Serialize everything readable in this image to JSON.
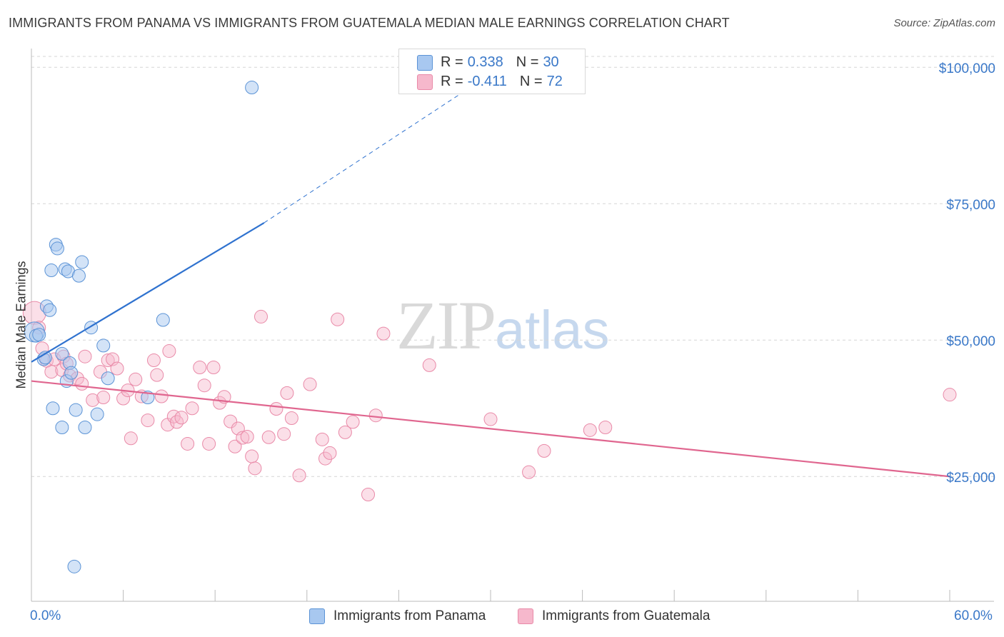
{
  "header": {
    "title": "IMMIGRANTS FROM PANAMA VS IMMIGRANTS FROM GUATEMALA MEDIAN MALE EARNINGS CORRELATION CHART",
    "source": "Source: ZipAtlas.com"
  },
  "watermark": {
    "zip": "ZIP",
    "atlas": "atlas"
  },
  "stats": [
    {
      "r_label": "R =",
      "r_value": "0.338",
      "n_label": "N =",
      "n_value": "30",
      "color": "#a8c8f0"
    },
    {
      "r_label": "R =",
      "r_value": "-0.411",
      "n_label": "N =",
      "n_value": "72",
      "color": "#f6b8cc"
    }
  ],
  "legend": {
    "panama": "Immigrants from Panama",
    "guatemala": "Immigrants from Guatemala"
  },
  "axes": {
    "ylabel": "Median Male Earnings",
    "x_min_label": "0.0%",
    "x_max_label": "60.0%",
    "y_ticks": [
      "$100,000",
      "$75,000",
      "$50,000",
      "$25,000"
    ]
  },
  "colors": {
    "panama_fill": "#a8c8f0",
    "panama_stroke": "#5b93d6",
    "panama_line": "#2f72cf",
    "guatemala_fill": "#f6b8cc",
    "guatemala_stroke": "#e98aa8",
    "guatemala_line": "#e0668f",
    "accent_text": "#3a78c8"
  },
  "chart_data": {
    "type": "scatter",
    "xlabel": "",
    "ylabel": "Median Male Earnings",
    "xlim": [
      0,
      60
    ],
    "ylim": [
      2000,
      103000
    ],
    "y_ticks": [
      25000,
      50000,
      75000,
      100000
    ],
    "grid": "horizontal dashed",
    "legend_placement": "bottom-center",
    "series": [
      {
        "name": "Immigrants from Panama",
        "trend": {
          "x": [
            0.0,
            15.2
          ],
          "y": [
            46000,
            71500
          ],
          "extended_to": [
            28.5,
            96000
          ]
        },
        "points": [
          [
            0.2,
            51500
          ],
          [
            0.3,
            50800
          ],
          [
            0.5,
            51000
          ],
          [
            0.8,
            46500
          ],
          [
            0.9,
            46800
          ],
          [
            1.0,
            56200
          ],
          [
            1.2,
            55500
          ],
          [
            1.3,
            62800
          ],
          [
            1.4,
            37500
          ],
          [
            1.6,
            67500
          ],
          [
            1.7,
            66800
          ],
          [
            2.0,
            47500
          ],
          [
            2.0,
            34000
          ],
          [
            2.2,
            63000
          ],
          [
            2.3,
            42500
          ],
          [
            2.4,
            62600
          ],
          [
            2.5,
            45800
          ],
          [
            2.6,
            44000
          ],
          [
            2.8,
            8500
          ],
          [
            2.9,
            37200
          ],
          [
            3.1,
            61800
          ],
          [
            3.3,
            64300
          ],
          [
            3.5,
            34000
          ],
          [
            3.9,
            52300
          ],
          [
            4.3,
            36400
          ],
          [
            4.7,
            49000
          ],
          [
            5.0,
            43000
          ],
          [
            7.6,
            39500
          ],
          [
            8.6,
            53700
          ],
          [
            14.4,
            96300
          ]
        ]
      },
      {
        "name": "Immigrants from Guatemala",
        "trend": {
          "x": [
            0.0,
            60.0
          ],
          "y": [
            42500,
            25000
          ]
        },
        "points": [
          [
            0.2,
            55000
          ],
          [
            0.5,
            52300
          ],
          [
            0.7,
            48500
          ],
          [
            1.0,
            46200
          ],
          [
            1.3,
            44200
          ],
          [
            1.5,
            46500
          ],
          [
            2.0,
            44500
          ],
          [
            2.1,
            47000
          ],
          [
            2.3,
            45700
          ],
          [
            2.5,
            43500
          ],
          [
            3.0,
            43000
          ],
          [
            3.3,
            42000
          ],
          [
            3.5,
            47000
          ],
          [
            4.0,
            39000
          ],
          [
            4.5,
            44200
          ],
          [
            4.7,
            39500
          ],
          [
            5.0,
            46300
          ],
          [
            5.3,
            46500
          ],
          [
            5.6,
            44800
          ],
          [
            6.0,
            39300
          ],
          [
            6.3,
            40800
          ],
          [
            6.5,
            32000
          ],
          [
            6.8,
            42800
          ],
          [
            7.2,
            39700
          ],
          [
            7.6,
            35300
          ],
          [
            8.0,
            46300
          ],
          [
            8.2,
            43600
          ],
          [
            8.5,
            39700
          ],
          [
            8.9,
            34500
          ],
          [
            9.0,
            48000
          ],
          [
            9.3,
            36000
          ],
          [
            9.5,
            35000
          ],
          [
            9.8,
            35800
          ],
          [
            10.2,
            31000
          ],
          [
            10.5,
            37500
          ],
          [
            11.0,
            45000
          ],
          [
            11.3,
            41700
          ],
          [
            11.6,
            31000
          ],
          [
            11.9,
            45000
          ],
          [
            12.3,
            38500
          ],
          [
            12.6,
            39600
          ],
          [
            13.0,
            35100
          ],
          [
            13.3,
            30500
          ],
          [
            13.5,
            33800
          ],
          [
            13.8,
            32100
          ],
          [
            14.1,
            32300
          ],
          [
            14.4,
            28700
          ],
          [
            14.6,
            26500
          ],
          [
            15.0,
            54300
          ],
          [
            15.5,
            32200
          ],
          [
            16.0,
            37400
          ],
          [
            16.5,
            32800
          ],
          [
            16.7,
            40300
          ],
          [
            17.0,
            35700
          ],
          [
            17.5,
            25200
          ],
          [
            18.2,
            41900
          ],
          [
            19.0,
            31800
          ],
          [
            19.2,
            28300
          ],
          [
            19.5,
            29300
          ],
          [
            20.0,
            53800
          ],
          [
            20.5,
            33100
          ],
          [
            21.0,
            35000
          ],
          [
            22.0,
            21700
          ],
          [
            22.5,
            36200
          ],
          [
            23.0,
            51200
          ],
          [
            26.0,
            45400
          ],
          [
            30.0,
            35500
          ],
          [
            32.5,
            25800
          ],
          [
            33.5,
            29700
          ],
          [
            36.5,
            33500
          ],
          [
            37.5,
            34000
          ],
          [
            60.0,
            40000
          ]
        ]
      }
    ]
  }
}
